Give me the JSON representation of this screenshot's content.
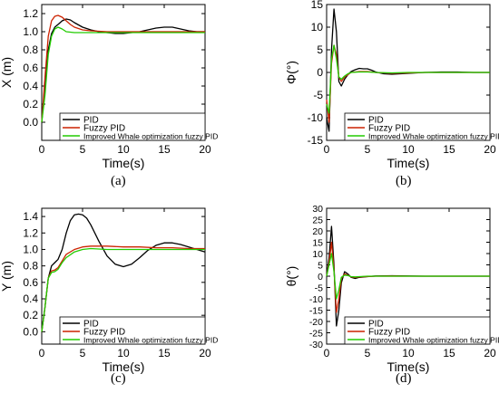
{
  "figure": {
    "panels": [
      {
        "id": "a",
        "caption": "(a)"
      },
      {
        "id": "b",
        "caption": "(b)"
      },
      {
        "id": "c",
        "caption": "(c)"
      },
      {
        "id": "d",
        "caption": "(d)"
      }
    ]
  },
  "colors": {
    "pid": "#000000",
    "fuzzy_pid": "#cc2200",
    "whale_fuzzy_pid": "#22cc00"
  },
  "chart_data": [
    {
      "type": "line",
      "caption": "(a)",
      "xlabel": "Time(s)",
      "ylabel": "X (m)",
      "xlim": [
        0,
        20
      ],
      "ylim": [
        -0.2,
        1.3
      ],
      "xticks": [
        "0",
        "5",
        "10",
        "15",
        "20"
      ],
      "yticks": [
        "0.0",
        "0.2",
        "0.4",
        "0.6",
        "0.8",
        "1.0",
        "1.2"
      ],
      "legend": "lower-right",
      "series": [
        {
          "name": "PID",
          "color": "#000000",
          "x": [
            0,
            0.4,
            0.8,
            1.2,
            1.6,
            2,
            2.5,
            3,
            3.5,
            4,
            5,
            6,
            7,
            8,
            9,
            10,
            11,
            12,
            13,
            14,
            15,
            16,
            17,
            18,
            19,
            20
          ],
          "y": [
            0,
            0.4,
            0.8,
            0.98,
            1.05,
            1.08,
            1.12,
            1.14,
            1.13,
            1.1,
            1.05,
            1.02,
            1.0,
            0.99,
            0.98,
            0.98,
            0.99,
            1.0,
            1.02,
            1.04,
            1.05,
            1.05,
            1.03,
            1.01,
            1.0,
            1.0
          ]
        },
        {
          "name": "Fuzzy PID",
          "color": "#cc2200",
          "x": [
            0,
            0.4,
            0.8,
            1.2,
            1.6,
            2,
            2.5,
            3,
            3.5,
            4,
            5,
            6,
            8,
            10,
            12,
            14,
            16,
            18,
            20
          ],
          "y": [
            0,
            0.5,
            0.95,
            1.12,
            1.17,
            1.18,
            1.16,
            1.12,
            1.08,
            1.05,
            1.02,
            1.01,
            1.0,
            1.0,
            1.0,
            1.0,
            1.0,
            1.0,
            1.0
          ]
        },
        {
          "name": "Improved Whale optimization fuzzy PID",
          "color": "#22cc00",
          "x": [
            0,
            0.4,
            0.8,
            1.2,
            1.6,
            2,
            2.5,
            3,
            4,
            5,
            6,
            8,
            10,
            12,
            14,
            16,
            18,
            20
          ],
          "y": [
            0,
            0.3,
            0.75,
            0.95,
            1.03,
            1.05,
            1.03,
            1.0,
            0.99,
            0.99,
            0.99,
            0.99,
            0.99,
            0.99,
            0.99,
            0.99,
            0.99,
            0.99
          ]
        }
      ]
    },
    {
      "type": "line",
      "caption": "(b)",
      "xlabel": "Time(s)",
      "ylabel": "Φ(°)",
      "xlim": [
        0,
        20
      ],
      "ylim": [
        -15,
        15
      ],
      "xticks": [
        "0",
        "5",
        "10",
        "15",
        "20"
      ],
      "yticks": [
        "-15",
        "-10",
        "-5",
        "0",
        "5",
        "10",
        "15"
      ],
      "legend": "lower-right",
      "series": [
        {
          "name": "PID",
          "color": "#000000",
          "x": [
            0,
            0.3,
            0.6,
            0.9,
            1.2,
            1.5,
            1.8,
            2.2,
            2.6,
            3,
            3.5,
            4,
            4.5,
            5,
            5.5,
            6,
            7,
            8,
            9,
            10,
            12,
            14,
            16,
            18,
            20
          ],
          "y": [
            -10,
            -13,
            5,
            14,
            9,
            -2,
            -3,
            -1.5,
            -0.5,
            0.2,
            0.6,
            0.9,
            0.8,
            0.8,
            0.5,
            0.1,
            -0.3,
            -0.4,
            -0.3,
            -0.2,
            0.0,
            0.1,
            0.1,
            0.0,
            0.0
          ]
        },
        {
          "name": "Fuzzy PID",
          "color": "#cc2200",
          "x": [
            0,
            0.3,
            0.6,
            0.9,
            1.2,
            1.5,
            1.8,
            2.2,
            2.6,
            3,
            4,
            5,
            6,
            8,
            10,
            12,
            14,
            16,
            18,
            20
          ],
          "y": [
            -6,
            -11,
            2,
            6,
            4,
            -1,
            -2,
            -1,
            -0.5,
            0.0,
            0.2,
            0.2,
            0.0,
            -0.2,
            -0.1,
            0.0,
            0.0,
            0.0,
            0.0,
            0.0
          ]
        },
        {
          "name": "Improved Whale optimization fuzzy PID",
          "color": "#22cc00",
          "x": [
            0,
            0.3,
            0.6,
            0.9,
            1.2,
            1.5,
            1.8,
            2.2,
            2.6,
            3,
            4,
            5,
            6,
            8,
            10,
            12,
            14,
            16,
            18,
            20
          ],
          "y": [
            -7,
            -9,
            3,
            6,
            3,
            -1,
            -1.5,
            -0.8,
            -0.3,
            0.0,
            0.1,
            0.1,
            0.0,
            -0.1,
            0.0,
            0.0,
            0.0,
            0.0,
            0.0,
            0.0
          ]
        }
      ]
    },
    {
      "type": "line",
      "caption": "(c)",
      "xlabel": "Time(s)",
      "ylabel": "Y (m)",
      "xlim": [
        0,
        20
      ],
      "ylim": [
        -0.15,
        1.5
      ],
      "xticks": [
        "0",
        "5",
        "10",
        "15",
        "20"
      ],
      "yticks": [
        "0.0",
        "0.2",
        "0.4",
        "0.6",
        "0.8",
        "1.0",
        "1.2",
        "1.4"
      ],
      "legend": "lower-right",
      "series": [
        {
          "name": "PID",
          "color": "#000000",
          "x": [
            0,
            0.4,
            0.8,
            1.2,
            1.6,
            2,
            2.5,
            3,
            3.5,
            4,
            4.5,
            5,
            5.5,
            6,
            7,
            8,
            9,
            10,
            11,
            12,
            13,
            14,
            15,
            16,
            17,
            18,
            19,
            20
          ],
          "y": [
            0,
            0.3,
            0.65,
            0.8,
            0.84,
            0.88,
            1.0,
            1.2,
            1.35,
            1.42,
            1.43,
            1.42,
            1.38,
            1.3,
            1.1,
            0.92,
            0.82,
            0.79,
            0.82,
            0.9,
            0.99,
            1.05,
            1.08,
            1.08,
            1.06,
            1.03,
            1.0,
            0.97
          ]
        },
        {
          "name": "Fuzzy PID",
          "color": "#cc2200",
          "x": [
            0,
            0.4,
            0.8,
            1.2,
            1.6,
            2,
            2.5,
            3,
            4,
            5,
            6,
            8,
            10,
            12,
            14,
            16,
            18,
            20
          ],
          "y": [
            0,
            0.3,
            0.65,
            0.74,
            0.75,
            0.78,
            0.86,
            0.94,
            1.0,
            1.03,
            1.04,
            1.04,
            1.03,
            1.03,
            1.02,
            1.02,
            1.01,
            1.01
          ]
        },
        {
          "name": "Improved Whale optimization fuzzy PID",
          "color": "#22cc00",
          "x": [
            0,
            0.4,
            0.8,
            1.2,
            1.6,
            2,
            2.5,
            3,
            4,
            5,
            6,
            8,
            10,
            12,
            14,
            16,
            18,
            20
          ],
          "y": [
            0,
            0.3,
            0.65,
            0.72,
            0.73,
            0.76,
            0.84,
            0.9,
            0.97,
            1.0,
            1.01,
            1.0,
            1.0,
            1.0,
            1.0,
            1.0,
            1.0,
            1.0
          ]
        }
      ]
    },
    {
      "type": "line",
      "caption": "(d)",
      "xlabel": "Time(s)",
      "ylabel": "θ(°)",
      "xlim": [
        0,
        20
      ],
      "ylim": [
        -30,
        30
      ],
      "xticks": [
        "0",
        "5",
        "10",
        "15",
        "20"
      ],
      "yticks": [
        "-30",
        "-25",
        "-20",
        "-15",
        "-10",
        "-5",
        "0",
        "5",
        "10",
        "15",
        "20",
        "25",
        "30"
      ],
      "legend": "lower-right",
      "series": [
        {
          "name": "PID",
          "color": "#000000",
          "x": [
            0,
            0.3,
            0.6,
            0.9,
            1.2,
            1.5,
            1.8,
            2.2,
            2.6,
            3,
            3.5,
            4,
            5,
            6,
            8,
            10,
            12,
            14,
            16,
            18,
            20
          ],
          "y": [
            0,
            8,
            22,
            5,
            -22,
            -15,
            -3,
            2,
            1,
            -0.5,
            -1,
            -0.5,
            -0.2,
            0.1,
            0.2,
            0.1,
            0.0,
            0.0,
            0.0,
            0.0,
            0.0
          ]
        },
        {
          "name": "Fuzzy PID",
          "color": "#cc2200",
          "x": [
            0,
            0.3,
            0.6,
            0.9,
            1.2,
            1.5,
            1.8,
            2.2,
            2.6,
            3,
            3.5,
            4,
            5,
            6,
            8,
            10,
            12,
            14,
            16,
            18,
            20
          ],
          "y": [
            0,
            6,
            15,
            3,
            -16,
            -10,
            -1,
            1,
            0.5,
            -0.3,
            -0.5,
            -0.3,
            -0.1,
            0.0,
            0.1,
            0.0,
            0.0,
            0.0,
            0.0,
            0.0,
            0.0
          ]
        },
        {
          "name": "Improved Whale optimization fuzzy PID",
          "color": "#22cc00",
          "x": [
            0,
            0.3,
            0.6,
            0.9,
            1.2,
            1.5,
            1.8,
            2.2,
            2.6,
            3,
            3.5,
            4,
            5,
            6,
            8,
            10,
            12,
            14,
            16,
            18,
            20
          ],
          "y": [
            0,
            5,
            10,
            2,
            -10,
            -6,
            -0.5,
            0.5,
            0.3,
            -0.2,
            -0.3,
            -0.2,
            0.0,
            0.0,
            0.0,
            0.0,
            0.0,
            0.0,
            0.0,
            0.0,
            0.0
          ]
        }
      ]
    }
  ]
}
